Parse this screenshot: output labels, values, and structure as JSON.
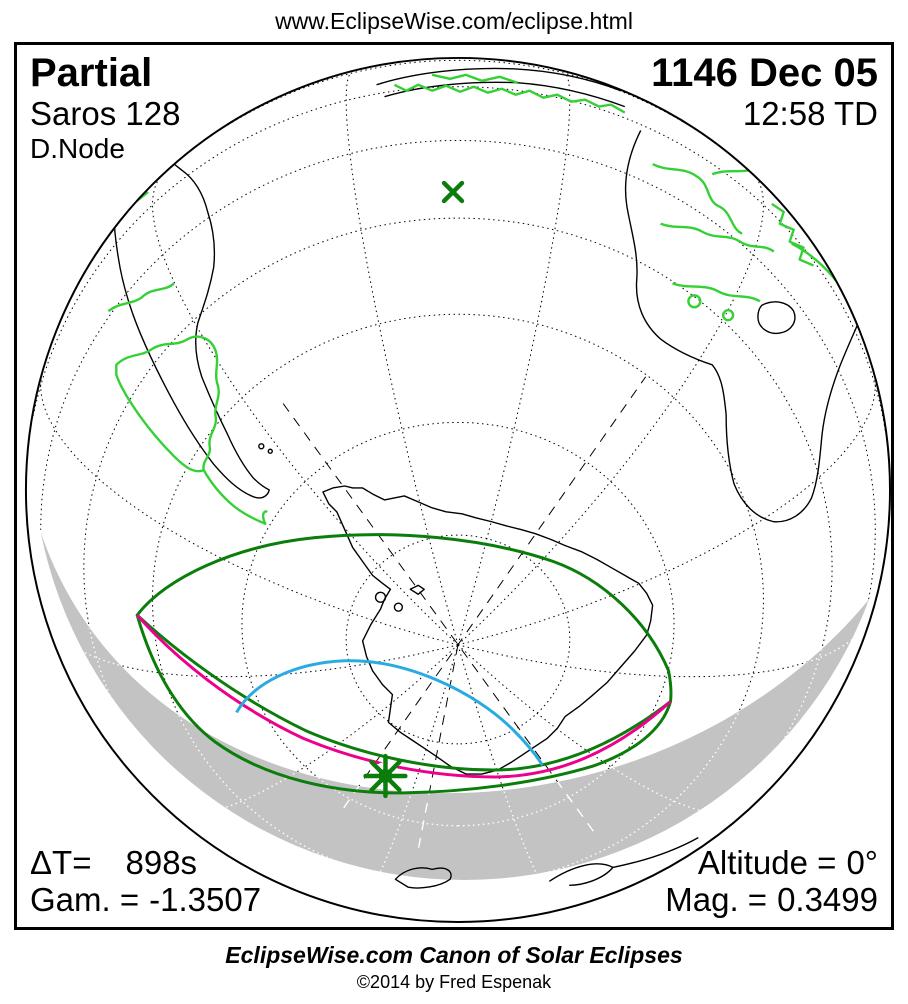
{
  "header": {
    "url": "www.EclipseWise.com/eclipse.html"
  },
  "eclipse": {
    "type": "Partial",
    "saros": "Saros 128",
    "node": "D.Node",
    "date": "1146 Dec 05",
    "time": "12:58 TD",
    "delta_t": {
      "label": "ΔT=",
      "value": "898s"
    },
    "gamma": {
      "label": "Gam. =",
      "value": "-1.3507"
    },
    "altitude": {
      "label": "Altitude =",
      "value": "0°"
    },
    "magnitude": {
      "label": "Mag. =",
      "value": "0.3499"
    }
  },
  "footer": {
    "title": "EclipseWise.com Canon of Solar Eclipses",
    "copyright": "©2014 by Fred Espenak"
  },
  "map": {
    "marker_glyphs": {
      "sub_solar_point": "×",
      "greatest_eclipse": "✳"
    },
    "colors": {
      "penumbra_limit": "#0b7d0b",
      "sunrise_sunset_line": "#ec008c",
      "max_on_horizon_line": "#29abe2",
      "country_borders": "#35d035",
      "night_shading": "#c3c3c3",
      "coastlines": "#000000"
    }
  }
}
